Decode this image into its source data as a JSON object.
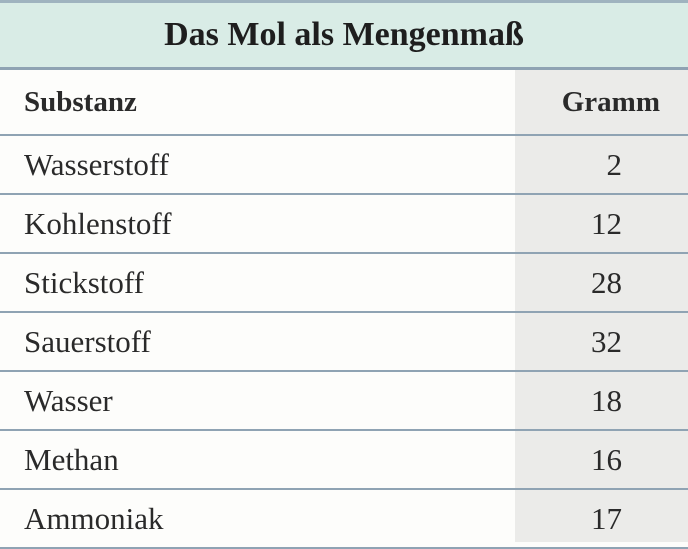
{
  "title": "Das Mol als Mengenmaß",
  "columns": [
    "Substanz",
    "Gramm"
  ],
  "rows": [
    [
      "Wasserstoff",
      "2"
    ],
    [
      "Kohlenstoff",
      "12"
    ],
    [
      "Stickstoff",
      "28"
    ],
    [
      "Sauerstoff",
      "32"
    ],
    [
      "Wasser",
      "18"
    ],
    [
      "Methan",
      "16"
    ],
    [
      "Ammoniak",
      "17"
    ]
  ]
}
